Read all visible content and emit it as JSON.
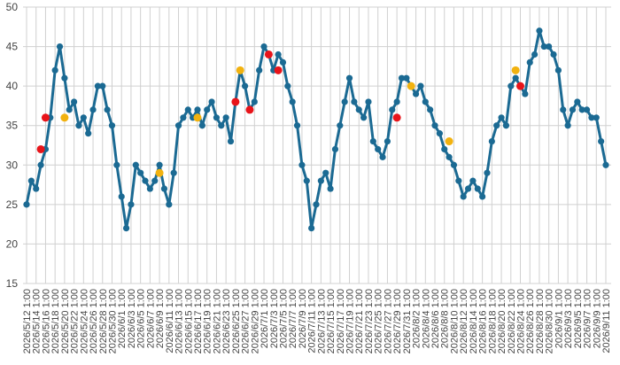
{
  "chart_data": {
    "type": "line",
    "categories": [
      "2026/5/12 1:00",
      null,
      "2026/5/14 1:00",
      null,
      "2026/5/16 1:00",
      null,
      "2026/5/18 1:00",
      null,
      "2026/5/20 1:00",
      null,
      "2026/5/22 1:00",
      null,
      "2026/5/24 1:00",
      null,
      "2026/5/26 1:00",
      null,
      "2026/5/28 1:00",
      null,
      "2026/5/30 1:00",
      null,
      "2026/6/1 1:00",
      null,
      "2026/6/3 1:00",
      null,
      "2026/6/5 1:00",
      null,
      "2026/6/7 1:00",
      null,
      "2026/6/9 1:00",
      null,
      "2026/6/11 1:00",
      null,
      "2026/6/13 1:00",
      null,
      "2026/6/15 1:00",
      null,
      "2026/6/17 1:00",
      null,
      "2026/6/19 1:00",
      null,
      "2026/6/21 1:00",
      null,
      "2026/6/23 1:00",
      null,
      "2026/6/25 1:00",
      null,
      "2026/6/27 1:00",
      null,
      "2026/6/29 1:00",
      null,
      "2026/7/1 1:00",
      null,
      "2026/7/3 1:00",
      null,
      "2026/7/5 1:00",
      null,
      "2026/7/7 1:00",
      null,
      "2026/7/9 1:00",
      null,
      "2026/7/11 1:00",
      null,
      "2026/7/13 1:00",
      null,
      "2026/7/15 1:00",
      null,
      "2026/7/17 1:00",
      null,
      "2026/7/19 1:00",
      null,
      "2026/7/21 1:00",
      null,
      "2026/7/23 1:00",
      null,
      "2026/7/25 1:00",
      null,
      "2026/7/27 1:00",
      null,
      "2026/7/29 1:00",
      null,
      "2026/7/31 1:00",
      null,
      "2026/8/2 1:00",
      null,
      "2026/8/4 1:00",
      null,
      "2026/8/6 1:00",
      null,
      "2026/8/8 1:00",
      null,
      "2026/8/10 1:00",
      null,
      "2026/8/12 1:00",
      null,
      "2026/8/14 1:00",
      null,
      "2026/8/16 1:00",
      null,
      "2026/8/18 1:00",
      null,
      "2026/8/20 1:00",
      null,
      "2026/8/22 1:00",
      null,
      "2026/8/24 1:00",
      null,
      "2026/8/26 1:00",
      null,
      "2026/8/28 1:00",
      null,
      "2026/8/30 1:00",
      null,
      "2026/9/1 1:00",
      null,
      "2026/9/3 1:00",
      null,
      "2026/9/5 1:00",
      null,
      "2026/9/7 1:00",
      null,
      "2026/9/9 1:00",
      null,
      "2026/9/11 1:00"
    ],
    "series": [
      {
        "color": "#1b6a93",
        "mode": "lines+markers",
        "values": [
          25,
          28,
          27,
          30,
          32,
          36,
          42,
          45,
          41,
          37,
          38,
          35,
          36,
          34,
          37,
          40,
          40,
          37,
          35,
          30,
          26,
          22,
          25,
          30,
          29,
          28,
          27,
          28,
          30,
          27,
          25,
          29,
          35,
          36,
          37,
          36,
          37,
          35,
          37,
          38,
          36,
          35,
          36,
          33,
          38,
          42,
          40,
          37,
          38,
          42,
          45,
          44,
          42,
          44,
          43,
          40,
          38,
          35,
          30,
          28,
          22,
          25,
          28,
          29,
          27,
          32,
          35,
          38,
          41,
          38,
          37,
          36,
          38,
          33,
          32,
          31,
          33,
          37,
          38,
          41,
          41,
          40,
          39,
          40,
          38,
          37,
          35,
          34,
          32,
          31,
          30,
          28,
          26,
          27,
          28,
          27,
          26,
          29,
          33,
          35,
          36,
          35,
          40,
          41,
          40,
          39,
          43,
          44,
          47,
          45,
          45,
          44,
          42,
          37,
          35,
          37,
          38,
          37,
          37,
          36,
          36,
          33,
          30
        ]
      },
      {
        "color": "#e8141a",
        "mode": "markers",
        "values": [
          null,
          null,
          null,
          32,
          36,
          null,
          null,
          null,
          null,
          null,
          null,
          null,
          null,
          null,
          null,
          null,
          null,
          null,
          null,
          null,
          null,
          null,
          null,
          null,
          null,
          null,
          null,
          null,
          null,
          null,
          null,
          null,
          null,
          null,
          null,
          null,
          null,
          null,
          null,
          null,
          null,
          null,
          null,
          null,
          38,
          null,
          null,
          37,
          null,
          null,
          null,
          44,
          null,
          42,
          null,
          null,
          null,
          null,
          null,
          null,
          null,
          null,
          null,
          null,
          null,
          null,
          null,
          null,
          null,
          null,
          null,
          null,
          null,
          null,
          null,
          null,
          null,
          null,
          36,
          null,
          null,
          null,
          null,
          null,
          null,
          null,
          null,
          null,
          null,
          null,
          null,
          null,
          null,
          null,
          null,
          null,
          null,
          null,
          null,
          null,
          null,
          null,
          null,
          null,
          40,
          null,
          null,
          null,
          null,
          null,
          null,
          null,
          null,
          null,
          null,
          null,
          null,
          null,
          null,
          null,
          null,
          null,
          null
        ]
      },
      {
        "color": "#f2b20f",
        "mode": "markers",
        "values": [
          null,
          null,
          null,
          null,
          null,
          null,
          null,
          null,
          36,
          null,
          null,
          null,
          null,
          null,
          null,
          null,
          null,
          null,
          null,
          null,
          null,
          null,
          null,
          null,
          null,
          null,
          null,
          null,
          29,
          null,
          null,
          null,
          null,
          null,
          null,
          null,
          36,
          null,
          null,
          null,
          null,
          null,
          null,
          null,
          null,
          42,
          null,
          null,
          null,
          null,
          null,
          null,
          null,
          null,
          null,
          null,
          null,
          null,
          null,
          null,
          null,
          null,
          null,
          null,
          null,
          null,
          null,
          null,
          null,
          null,
          null,
          null,
          null,
          null,
          null,
          null,
          null,
          null,
          null,
          null,
          null,
          40,
          null,
          null,
          null,
          null,
          null,
          null,
          null,
          33,
          null,
          null,
          null,
          null,
          null,
          null,
          null,
          null,
          null,
          null,
          null,
          null,
          null,
          42,
          null,
          null,
          null,
          null,
          null,
          null,
          null,
          null,
          null,
          null,
          null,
          null,
          null,
          null,
          null,
          null,
          null,
          null,
          null
        ]
      }
    ],
    "ylim": [
      15,
      50
    ],
    "yticks": [
      15,
      20,
      25,
      30,
      35,
      40,
      45,
      50
    ],
    "grid": true
  }
}
